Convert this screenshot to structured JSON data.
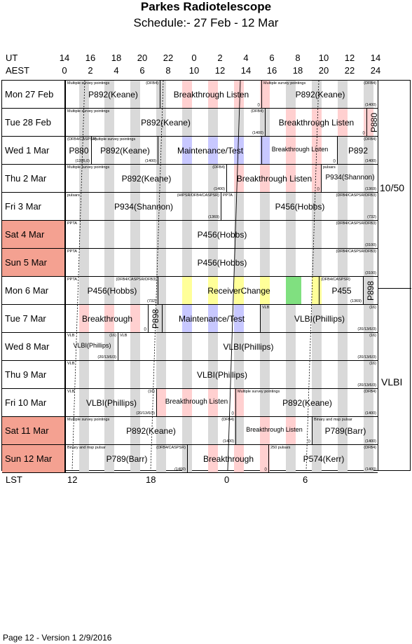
{
  "header": {
    "title": "Parkes Radiotelescope",
    "subtitle": "Schedule:- 27 Feb - 12 Mar"
  },
  "axes": {
    "ut_label": "UT",
    "aest_label": "AEST",
    "lst_label": "LST",
    "ut_ticks": [
      "14",
      "16",
      "18",
      "20",
      "22",
      "0",
      "2",
      "4",
      "6",
      "8",
      "10",
      "12",
      "14"
    ],
    "aest_ticks": [
      "0",
      "2",
      "4",
      "6",
      "8",
      "10",
      "12",
      "14",
      "16",
      "18",
      "20",
      "22",
      "24"
    ],
    "lst_ticks": [
      "12",
      "18",
      "0",
      "6"
    ]
  },
  "side_labels": {
    "top": "10/50",
    "bottom": "VLBI"
  },
  "colors": {
    "weekend": "#f4a191",
    "gray_stripe": "#d9d9d9",
    "pink_stripe": "#ffd0d0",
    "blue_stripe": "#c8c8ff",
    "yellow": "#ffff99",
    "green": "#80e080"
  },
  "days": [
    {
      "label": "Mon  27 Feb",
      "weekend": false,
      "slots": [
        {
          "name": "P892(Keane)",
          "top": "Multiple survey pointings",
          "band": "",
          "tr": "(DFB4)"
        },
        {
          "name": "Breakthrough Listen",
          "top": "",
          "band": "()"
        },
        {
          "name": "P892(Keane)",
          "top": "Multiple survey pointings",
          "band": "(1400)",
          "tr": "(DFB4)"
        }
      ]
    },
    {
      "label": "Tue  28 Feb",
      "weekend": false,
      "slots": [
        {
          "name": "P892(Keane)",
          "top": "Multiple survey pointings",
          "band": "(1400)",
          "tr": "(DFB4)"
        },
        {
          "name": "Breakthrough Listen",
          "top": "",
          "band": "()"
        },
        {
          "name": "P880",
          "top": "",
          "band": ""
        }
      ]
    },
    {
      "label": "Wed  1 Mar",
      "weekend": false,
      "slots": [
        {
          "name": "P880",
          "top": "(DFB4/CASPSR)",
          "band": "(1395,0)"
        },
        {
          "name": "P892(Keane)",
          "top": "Multiple survey pointings",
          "band": "(1400)"
        },
        {
          "name": "Maintenance/Test",
          "top": "",
          "band": ""
        },
        {
          "name": "Breakthrough Listen",
          "top": "",
          "band": "()"
        },
        {
          "name": "P892",
          "top": "",
          "band": "(1400)",
          "tr": "(DFB4)"
        }
      ]
    },
    {
      "label": "Thu  2 Mar",
      "weekend": false,
      "slots": [
        {
          "name": "P892(Keane)",
          "top": "Multiple survey pointings",
          "band": "(1400)",
          "tr": "(DFB4)"
        },
        {
          "name": "Breakthrough Listen",
          "top": "",
          "band": "()"
        },
        {
          "name": "P934(Shannon)",
          "top": "pulsars",
          "band": "(1369)"
        }
      ]
    },
    {
      "label": "Fri  3 Mar",
      "weekend": false,
      "slots": [
        {
          "name": "P934(Shannon)",
          "top": "pulsars",
          "band": "(1369)",
          "tr": "(HIPSR/DFB4/CASPSR)"
        },
        {
          "name": "P456(Hobbs)",
          "top": "PPTA",
          "band": "(732)",
          "tr": "(DFB4/CASPSR/DFB3)"
        }
      ]
    },
    {
      "label": "Sat  4 Mar",
      "weekend": true,
      "slots": [
        {
          "name": "P456(Hobbs)",
          "top": "PPTA",
          "band": "(3100)",
          "tr": "(DFB4/CASPSR/DFB3)"
        }
      ]
    },
    {
      "label": "Sun  5 Mar",
      "weekend": true,
      "slots": [
        {
          "name": "P456(Hobbs)",
          "top": "PPTA",
          "band": "(3100)",
          "tr": "(DFB4/CASPSR/DFB3)"
        }
      ]
    },
    {
      "label": "Mon  6 Mar",
      "weekend": false,
      "slots": [
        {
          "name": "P456(Hobbs)",
          "top": "PPTA",
          "band": "(732)",
          "tr": "(DFB4/CASPSR/DFB3)"
        },
        {
          "name": "ReceiverChange",
          "top": "",
          "band": ""
        },
        {
          "name": "P455",
          "top": "(DFB4/CASPSR)",
          "band": "(1369)"
        },
        {
          "name": "P898",
          "top": "",
          "band": ""
        }
      ]
    },
    {
      "label": "Tue  7 Mar",
      "weekend": false,
      "slots": [
        {
          "name": "Breakthrough",
          "top": "",
          "band": "()"
        },
        {
          "name": "P898",
          "top": "",
          "band": ""
        },
        {
          "name": "Maintenance/Test",
          "top": "",
          "band": ""
        },
        {
          "name": "VLBI(Phillips)",
          "top": "VLB",
          "band": "(20/13/6/3)",
          "tr": "(16)"
        }
      ]
    },
    {
      "label": "Wed  8 Mar",
      "weekend": false,
      "slots": [
        {
          "name": "VLBI(Phillips)",
          "top": "VLB",
          "band": "(20/13/6/3)",
          "tr": "(16)"
        },
        {
          "name": "VLBI(Phillips)",
          "top": "VLB",
          "band": "(20/13/6/3)",
          "tr": "(16)"
        }
      ]
    },
    {
      "label": "Thu  9 Mar",
      "weekend": false,
      "slots": [
        {
          "name": "VLBI(Phillips)",
          "top": "VLB",
          "band": "(20/13/6/3)",
          "tr": "(16)"
        }
      ]
    },
    {
      "label": "Fri  10 Mar",
      "weekend": false,
      "slots": [
        {
          "name": "VLBI(Phillips)",
          "top": "VLB",
          "band": "(20/13/6/3)",
          "tr": "(16)"
        },
        {
          "name": "Breakthrough Listen",
          "top": "",
          "band": "()"
        },
        {
          "name": "P892(Keane)",
          "top": "Multiple survey pointings",
          "band": "(1400)",
          "tr": "(DFB4)"
        }
      ]
    },
    {
      "label": "Sat  11 Mar",
      "weekend": true,
      "slots": [
        {
          "name": "P892(Keane)",
          "top": "Multiple survey pointings",
          "band": "(1400)",
          "tr": "(DFB4)"
        },
        {
          "name": "Breakthrough Listen",
          "top": "",
          "band": "()"
        },
        {
          "name": "P789(Barr)",
          "top": "Binary and msp pulsar",
          "band": "(1400)"
        }
      ]
    },
    {
      "label": "Sun  12 Mar",
      "weekend": true,
      "slots": [
        {
          "name": "P789(Barr)",
          "top": "Binary and msp pulsar",
          "band": "(1400)",
          "tr": "(DFB4/CASPSR)"
        },
        {
          "name": "Breakthrough",
          "top": "",
          "band": "()"
        },
        {
          "name": "P574(Kerr)",
          "top": "250 pulsars",
          "band": "(1400)",
          "tr": "(DFB4)"
        }
      ]
    }
  ],
  "footer": "Page 12 - Version 1  2/9/2016"
}
